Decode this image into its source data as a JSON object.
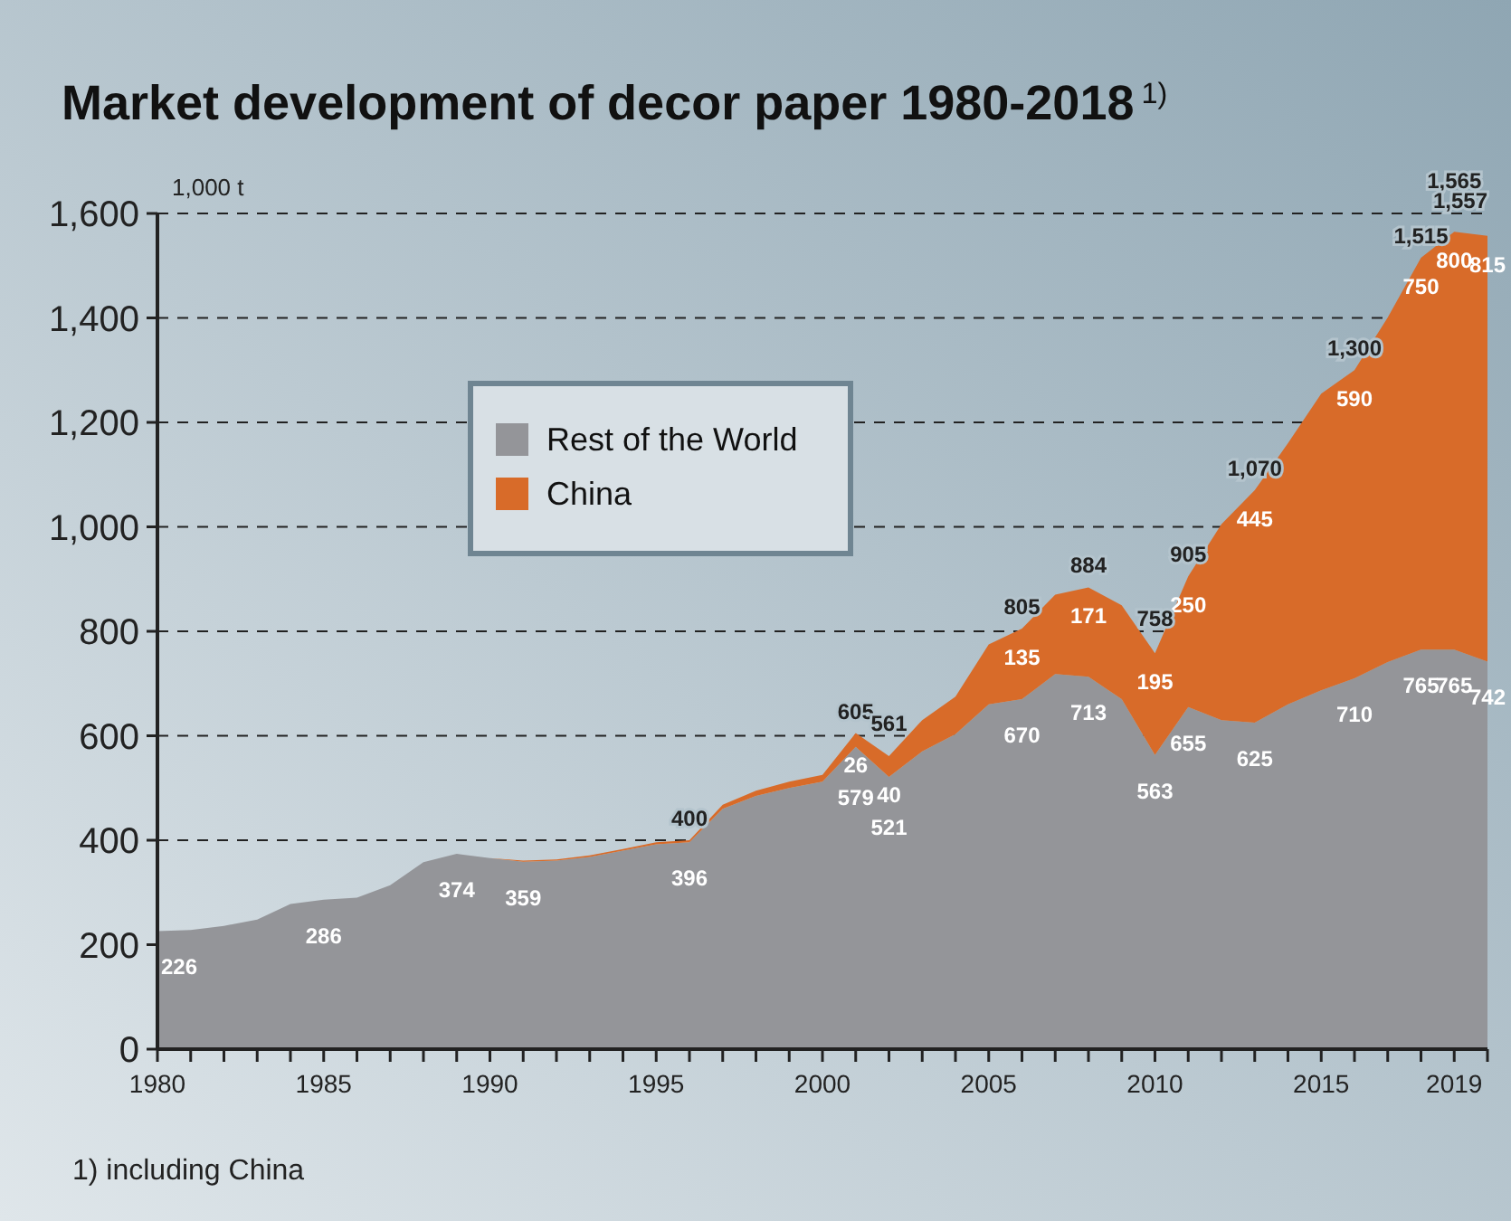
{
  "chart_data": {
    "type": "area",
    "title": "Market development of decor paper 1980-2018$^{1)}$",
    "ylabel": "1,000 t",
    "x": [
      1980,
      1981,
      1982,
      1983,
      1984,
      1985,
      1986,
      1987,
      1988,
      1989,
      1990,
      1991,
      1992,
      1993,
      1994,
      1995,
      1996,
      1997,
      1998,
      1999,
      2000,
      2001,
      2002,
      2003,
      2004,
      2005,
      2006,
      2007,
      2008,
      2009,
      2010,
      2011,
      2012,
      2013,
      2014,
      2015,
      2016,
      2017,
      2018,
      2019,
      2020
    ],
    "xlim": [
      1980,
      2020
    ],
    "xticks": [
      1980,
      {
        "value": 1981,
        "label": null
      },
      {
        "value": 1982,
        "label": null
      },
      {
        "value": 1983,
        "label": null
      },
      {
        "value": 1984,
        "label": null
      },
      1985,
      {
        "value": 1986,
        "label": null
      },
      {
        "value": 1987,
        "label": null
      },
      {
        "value": 1988,
        "label": null
      },
      {
        "value": 1989,
        "label": null
      },
      1990,
      {
        "value": 1991,
        "label": null
      },
      {
        "value": 1992,
        "label": null
      },
      {
        "value": 1993,
        "label": null
      },
      {
        "value": 1994,
        "label": null
      },
      1995,
      {
        "value": 1996,
        "label": null
      },
      {
        "value": 1997,
        "label": null
      },
      {
        "value": 1998,
        "label": null
      },
      {
        "value": 1999,
        "label": null
      },
      2000,
      {
        "value": 2001,
        "label": null
      },
      {
        "value": 2002,
        "label": null
      },
      {
        "value": 2003,
        "label": null
      },
      {
        "value": 2004,
        "label": null
      },
      2005,
      {
        "value": 2006,
        "label": null
      },
      {
        "value": 2007,
        "label": null
      },
      {
        "value": 2008,
        "label": null
      },
      {
        "value": 2009,
        "label": null
      },
      2010,
      {
        "value": 2011,
        "label": null
      },
      {
        "value": 2012,
        "label": null
      },
      {
        "value": 2013,
        "label": null
      },
      {
        "value": 2014,
        "label": null
      },
      2015,
      {
        "value": 2016,
        "label": null
      },
      {
        "value": 2017,
        "label": null
      },
      {
        "value": 2018,
        "label": null
      },
      2019,
      {
        "value": 2020,
        "label": null
      }
    ],
    "ylim": [
      0,
      1600
    ],
    "yticks": [
      0,
      200,
      400,
      600,
      800,
      {
        "value": 1000,
        "label": "1,000"
      },
      {
        "value": 1200,
        "label": "1,200"
      },
      {
        "value": 1400,
        "label": "1,400"
      },
      {
        "value": 1600,
        "label": "1,600"
      }
    ],
    "stacked": true,
    "grid": "y",
    "legend": "top left",
    "series": [
      {
        "name": "Rest of the World",
        "color": "#949599",
        "values": [
          226,
          228,
          236,
          248,
          278,
          286,
          290,
          314,
          358,
          374,
          366,
          359,
          361,
          368,
          380,
          392,
          396,
          460,
          485,
          500,
          512,
          579,
          521,
          570,
          603,
          660,
          670,
          718,
          713,
          670,
          563,
          655,
          630,
          625,
          660,
          687,
          710,
          741,
          765,
          765,
          742
        ],
        "value_labels": [
          "226",
          null,
          null,
          null,
          null,
          "286",
          null,
          null,
          null,
          "374",
          null,
          "359",
          null,
          null,
          null,
          null,
          "396",
          null,
          null,
          null,
          null,
          "579",
          "521",
          null,
          null,
          null,
          "670",
          null,
          "713",
          null,
          "563",
          "655",
          null,
          "625",
          null,
          null,
          "710",
          null,
          "765",
          "765",
          "742"
        ]
      },
      {
        "name": "China",
        "color": "#d86b29",
        "values": [
          0,
          0,
          0,
          0,
          0,
          0,
          0,
          0,
          0,
          0,
          0,
          2,
          2,
          3,
          3,
          4,
          4,
          8,
          10,
          12,
          13,
          26,
          40,
          60,
          72,
          115,
          135,
          152,
          171,
          180,
          195,
          250,
          375,
          445,
          500,
          568,
          590,
          660,
          750,
          800,
          815
        ],
        "value_labels": [
          null,
          null,
          null,
          null,
          null,
          null,
          null,
          null,
          null,
          null,
          null,
          null,
          null,
          null,
          null,
          null,
          null,
          null,
          null,
          null,
          null,
          "26",
          "40",
          null,
          null,
          null,
          "135",
          null,
          "171",
          null,
          "195",
          "250",
          null,
          "445",
          null,
          null,
          "590",
          null,
          "750",
          "800",
          "815"
        ]
      }
    ],
    "totals": [
      null,
      null,
      null,
      null,
      null,
      null,
      null,
      null,
      null,
      null,
      null,
      null,
      null,
      null,
      null,
      null,
      "400",
      null,
      null,
      null,
      null,
      "605",
      "561",
      null,
      null,
      null,
      "805",
      null,
      "884",
      null,
      "758",
      "905",
      null,
      "1,070",
      null,
      null,
      "1,300",
      null,
      "1,515",
      "1,565",
      "1,557"
    ],
    "annotations": [
      "1) including China"
    ]
  }
}
